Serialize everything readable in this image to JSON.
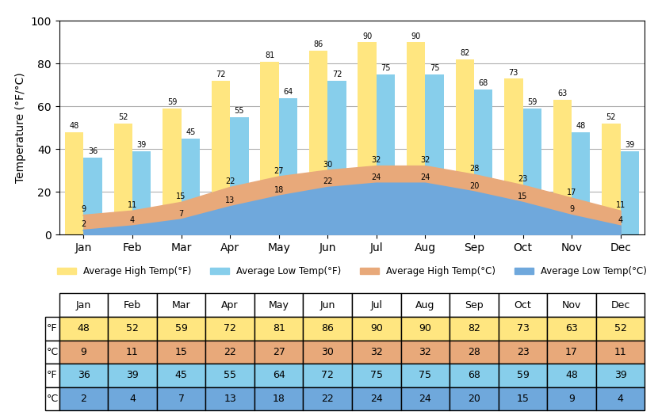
{
  "chart_data": {
    "type": "bar",
    "categories": [
      "Jan",
      "Feb",
      "Mar",
      "Apr",
      "May",
      "Jun",
      "Jul",
      "Aug",
      "Sep",
      "Oct",
      "Nov",
      "Dec"
    ],
    "series": [
      {
        "name": "Average High Temp(°F)",
        "type": "bar",
        "color": "#FFE680",
        "values": [
          48,
          52,
          59,
          72,
          81,
          86,
          90,
          90,
          82,
          73,
          63,
          52
        ]
      },
      {
        "name": "Average Low Temp(°F)",
        "type": "bar",
        "color": "#87CEEB",
        "values": [
          36,
          39,
          45,
          55,
          64,
          72,
          75,
          75,
          68,
          59,
          48,
          39
        ]
      },
      {
        "name": "Average High Temp(°C)",
        "type": "area",
        "color": "#E8A97A",
        "values": [
          9,
          11,
          15,
          22,
          27,
          30,
          32,
          32,
          28,
          23,
          17,
          11
        ]
      },
      {
        "name": "Average Low Temp(°C)",
        "type": "area",
        "color": "#6FA8DC",
        "values": [
          2,
          4,
          7,
          13,
          18,
          22,
          24,
          24,
          20,
          15,
          9,
          4
        ]
      }
    ],
    "y_label": "Temperature (°F/°C)",
    "ylim": [
      0,
      100
    ],
    "yticks": [
      0,
      20,
      40,
      60,
      80,
      100
    ],
    "grid": true,
    "data_labels": true,
    "legend": "upper center",
    "table": {
      "rows": [
        {
          "label": "°F",
          "color": "#FFE680",
          "values": [
            48,
            52,
            59,
            72,
            81,
            86,
            90,
            90,
            82,
            73,
            63,
            52
          ]
        },
        {
          "label": "°C",
          "color": "#E8A97A",
          "values": [
            9,
            11,
            15,
            22,
            27,
            30,
            32,
            32,
            28,
            23,
            17,
            11
          ]
        },
        {
          "label": "°F",
          "color": "#87CEEB",
          "values": [
            36,
            39,
            45,
            55,
            64,
            72,
            75,
            75,
            68,
            59,
            48,
            39
          ]
        },
        {
          "label": "°C",
          "color": "#6FA8DC",
          "values": [
            2,
            4,
            7,
            13,
            18,
            22,
            24,
            24,
            20,
            15,
            9,
            4
          ]
        }
      ]
    }
  }
}
